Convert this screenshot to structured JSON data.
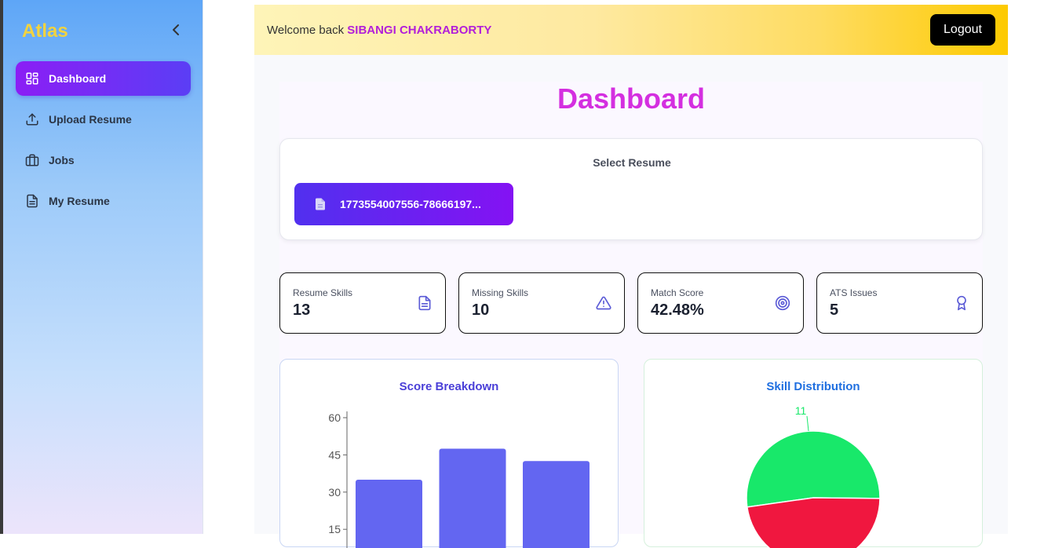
{
  "sidebar": {
    "brand": "Atlas",
    "items": [
      {
        "label": "Dashboard",
        "icon": "dashboard-grid-icon",
        "active": true
      },
      {
        "label": "Upload Resume",
        "icon": "upload-icon",
        "active": false
      },
      {
        "label": "Jobs",
        "icon": "briefcase-icon",
        "active": false
      },
      {
        "label": "My Resume",
        "icon": "document-icon",
        "active": false
      }
    ]
  },
  "header": {
    "welcome": "Welcome back",
    "username": "SIBANGI CHAKRABORTY",
    "logout": "Logout"
  },
  "main": {
    "title": "Dashboard",
    "select_resume_label": "Select Resume",
    "resume_file": "1773554007556-78666197...",
    "stats": [
      {
        "label": "Resume Skills",
        "value": "13",
        "icon": "document-icon"
      },
      {
        "label": "Missing Skills",
        "value": "10",
        "icon": "warning-icon"
      },
      {
        "label": "Match Score",
        "value": "42.48%",
        "icon": "target-icon"
      },
      {
        "label": "ATS Issues",
        "value": "5",
        "icon": "award-icon"
      }
    ]
  },
  "colors": {
    "accent_purple": "#7c3aed",
    "title_magenta": "#d42fe0",
    "bar": "#6366f1",
    "pie_green": "#18e86a",
    "pie_red": "#f0173f"
  },
  "chart_data": [
    {
      "type": "bar",
      "title": "Score Breakdown",
      "y_ticks": [
        15,
        30,
        45,
        60
      ],
      "ylim": [
        0,
        60
      ],
      "values": [
        35,
        47.5,
        42.5
      ],
      "grid": false
    },
    {
      "type": "pie",
      "title": "Skill Distribution",
      "slices": [
        {
          "value": 11,
          "color": "#18e86a"
        },
        {
          "value": 10,
          "color": "#f0173f"
        }
      ],
      "labels_visible": [
        "11"
      ]
    }
  ]
}
